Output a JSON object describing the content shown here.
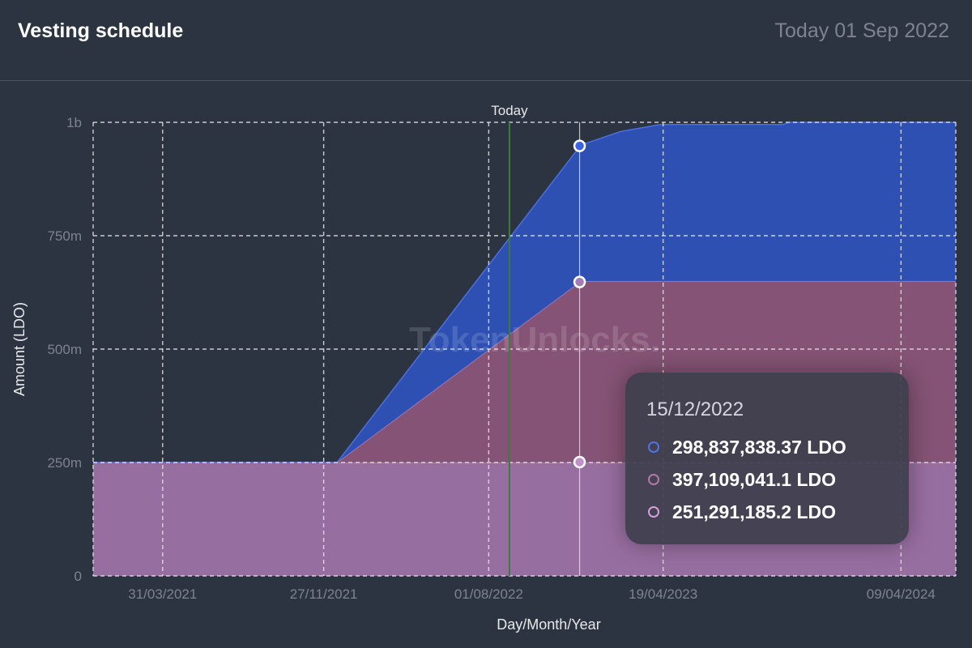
{
  "header": {
    "title": "Vesting schedule",
    "today": "Today 01 Sep 2022"
  },
  "watermark": "TokenUnlocks.",
  "chart_data": {
    "type": "area",
    "stacked": true,
    "xlabel": "Day/Month/Year",
    "ylabel": "Amount (LDO)",
    "ylim": [
      0,
      1000000000
    ],
    "yticks": [
      0,
      250000000,
      500000000,
      750000000,
      1000000000
    ],
    "ytick_labels": [
      "0",
      "250m",
      "500m",
      "750m",
      "1b"
    ],
    "xlim": [
      "2020-12-17",
      "2024-06-30"
    ],
    "xticks": [
      "2021-03-31",
      "2021-11-27",
      "2022-08-01",
      "2023-04-19",
      "2024-04-09"
    ],
    "xtick_labels": [
      "31/03/2021",
      "27/11/2021",
      "01/08/2022",
      "19/04/2023",
      "09/04/2024"
    ],
    "today_marker": {
      "date": "2022-09-01",
      "label": "Today"
    },
    "grid": true,
    "series": [
      {
        "color": "#a173a8",
        "points": [
          [
            "2020-12-17",
            250000000
          ],
          [
            "2024-06-30",
            250000000
          ]
        ]
      },
      {
        "color": "#8a5578",
        "points": [
          [
            "2020-12-17",
            0
          ],
          [
            "2021-12-17",
            0
          ],
          [
            "2022-12-17",
            400000000
          ],
          [
            "2024-06-30",
            400000000
          ]
        ]
      },
      {
        "color": "#2d52b8",
        "points": [
          [
            "2020-12-17",
            0
          ],
          [
            "2021-12-17",
            0
          ],
          [
            "2022-12-17",
            300000000
          ],
          [
            "2023-02-15",
            330000000
          ],
          [
            "2023-04-15",
            345000000
          ],
          [
            "2023-10-15",
            345000000
          ],
          [
            "2023-10-25",
            350000000
          ],
          [
            "2024-06-30",
            350000000
          ]
        ]
      }
    ],
    "tooltip": {
      "date": "15/12/2022",
      "x": "2022-12-15",
      "values": [
        "298,837,838.37 LDO",
        "397,109,041.1 LDO",
        "251,291,185.2 LDO"
      ],
      "colors": [
        "#4f72e8",
        "#b17aa4",
        "#d9a0da"
      ],
      "y_cumulative": [
        948000000,
        648000000,
        251000000
      ]
    }
  }
}
